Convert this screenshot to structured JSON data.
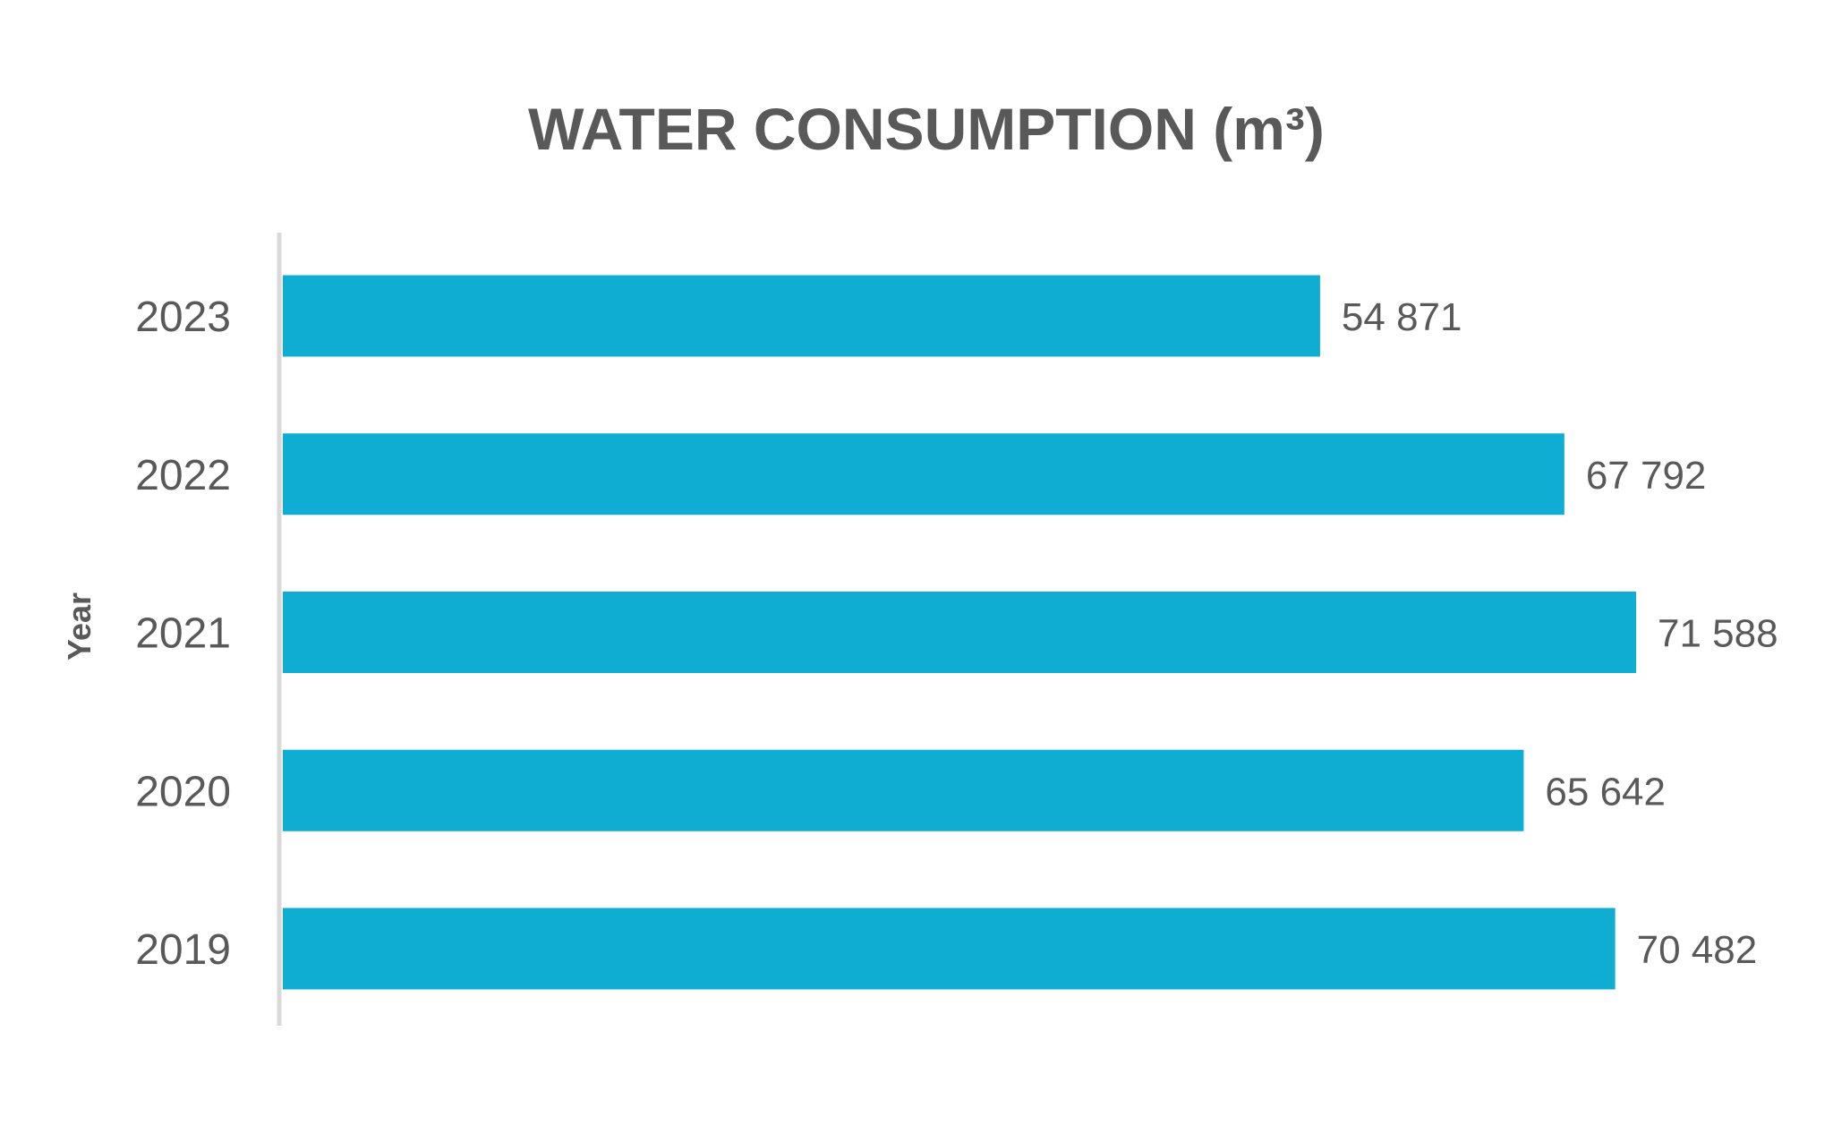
{
  "chart_data": {
    "type": "bar",
    "orientation": "horizontal",
    "title": "WATER CONSUMPTION (m³)",
    "xlabel": "",
    "ylabel": "Year",
    "categories": [
      "2023",
      "2022",
      "2021",
      "2020",
      "2019"
    ],
    "values": [
      54871,
      67792,
      71588,
      65642,
      70482
    ],
    "value_labels": [
      "54 871",
      "67 792",
      "71 588",
      "65 642",
      "70 482"
    ],
    "xlim": [
      0,
      71588
    ],
    "grid": false,
    "legend": "none",
    "colors": {
      "bar": "#10ADD3",
      "axis": "#D9D9D9",
      "text": "#595959"
    }
  }
}
